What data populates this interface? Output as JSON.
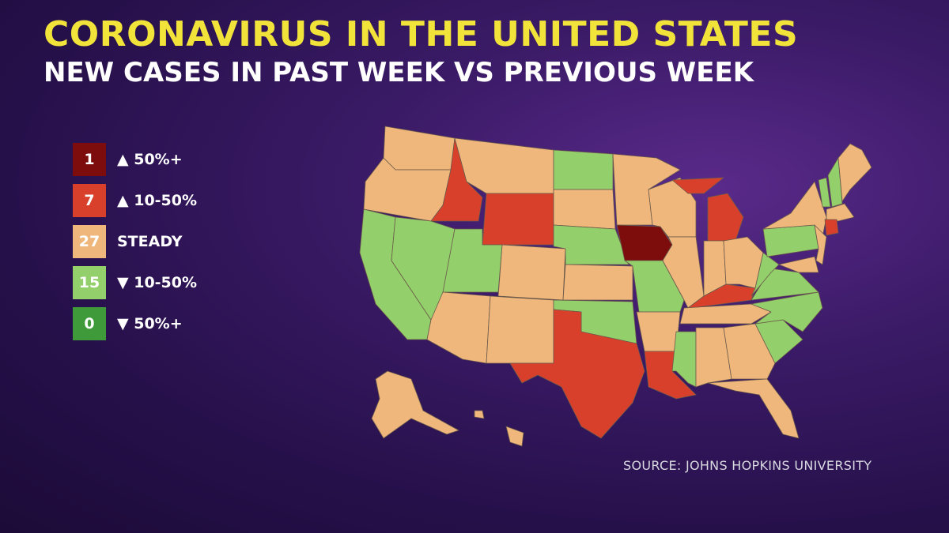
{
  "title": "CORONAVIRUS IN THE UNITED STATES",
  "subtitle": "NEW CASES IN PAST WEEK VS PREVIOUS WEEK",
  "legend": [
    {
      "count": "1",
      "label": "▲ 50%+",
      "color": "#7d0d0d"
    },
    {
      "count": "7",
      "label": "▲ 10-50%",
      "color": "#d9402b"
    },
    {
      "count": "27",
      "label": "STEADY",
      "color": "#efb77c"
    },
    {
      "count": "15",
      "label": "▼ 10-50%",
      "color": "#93cf6b"
    },
    {
      "count": "0",
      "label": "▼ 50%+",
      "color": "#3f9a3a"
    }
  ],
  "source": "SOURCE: JOHNS HOPKINS UNIVERSITY"
}
